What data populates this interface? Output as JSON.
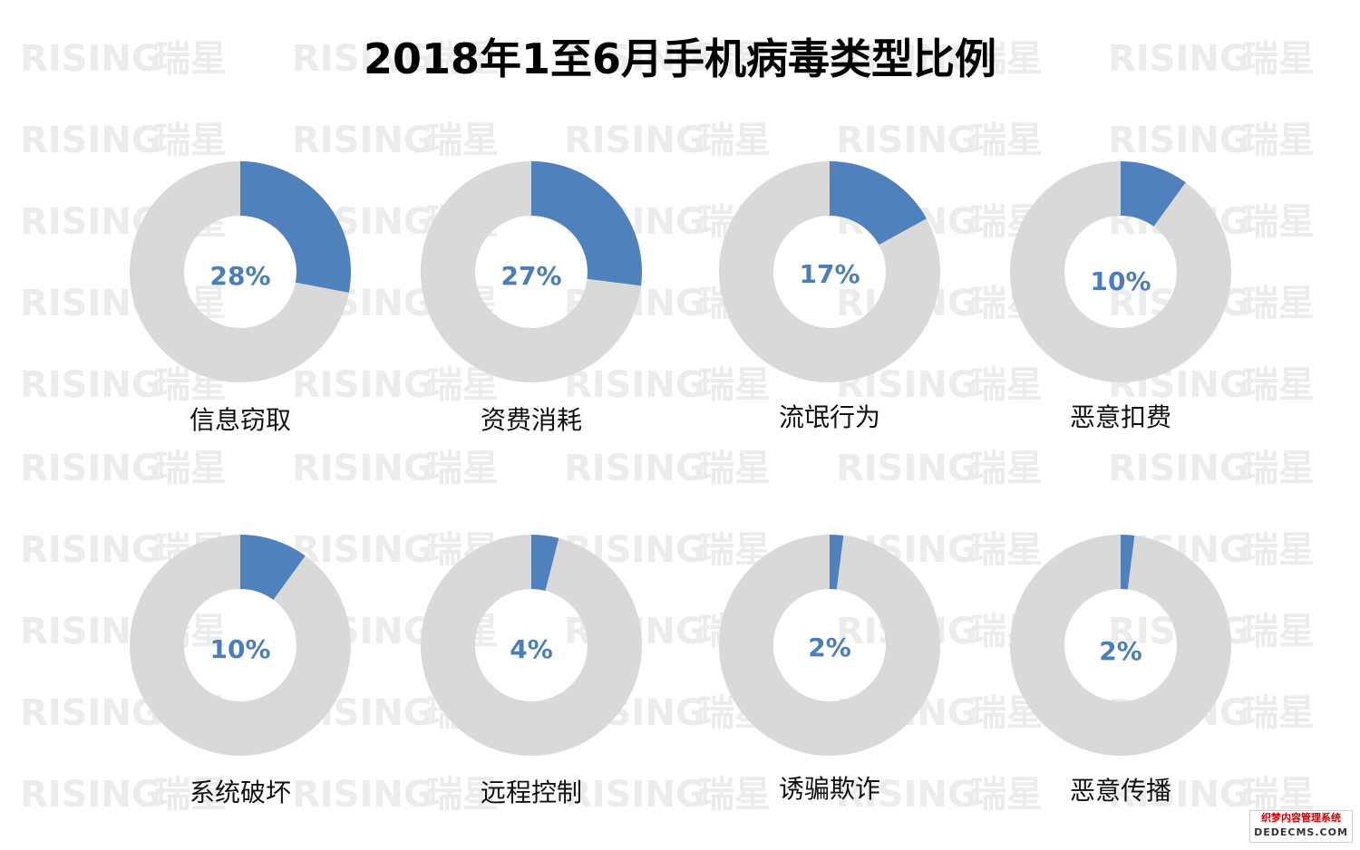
{
  "title": "2018年1至6月手机病毒类型比例",
  "watermark": {
    "brand_en": "RISING",
    "brand_cn": "瑞星"
  },
  "corner_logo": {
    "cn": "织梦内容管理系统",
    "en": "DEDECMS.COM"
  },
  "colors": {
    "value": "#4f81bd",
    "rest": "#d9d9d9",
    "value_text": "#4a7ebb"
  },
  "chart_data": {
    "type": "pie",
    "title": "2018年1至6月手机病毒类型比例",
    "categories": [
      "信息窃取",
      "资费消耗",
      "流氓行为",
      "恶意扣费",
      "系统破坏",
      "远程控制",
      "诱骗欺诈",
      "恶意传播"
    ],
    "values": [
      28,
      27,
      17,
      10,
      10,
      4,
      2,
      2
    ],
    "value_labels": [
      "28%",
      "27%",
      "17%",
      "10%",
      "10%",
      "4%",
      "2%",
      "2%"
    ],
    "unit": "%"
  }
}
